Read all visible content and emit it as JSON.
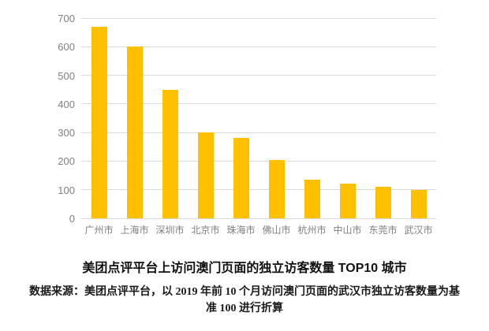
{
  "chart_data": {
    "type": "bar",
    "title": "美团点评平台上访问澳门页面的独立访客数量 TOP10 城市",
    "categories": [
      "广州市",
      "上海市",
      "深圳市",
      "北京市",
      "珠海市",
      "佛山市",
      "杭州市",
      "中山市",
      "东莞市",
      "武汉市"
    ],
    "values": [
      670,
      600,
      450,
      300,
      280,
      205,
      135,
      120,
      110,
      100
    ],
    "xlabel": "",
    "ylabel": "",
    "ylim": [
      0,
      700
    ],
    "ytick_step": 100,
    "ytick_labels": [
      "0",
      "100",
      "200",
      "300",
      "400",
      "500",
      "600",
      "700"
    ],
    "grid": true,
    "legend": "none",
    "bar_color": "#FFC000",
    "gridline_color": "#D9D9D9",
    "axis_label_color": "#7F7F7F"
  },
  "source_note": {
    "line1": "数据来源：美团点评平台，以 2019 年前 10 个月访问澳门页面的武汉市独立访客数量为基",
    "line2": "准 100 进行折算"
  }
}
